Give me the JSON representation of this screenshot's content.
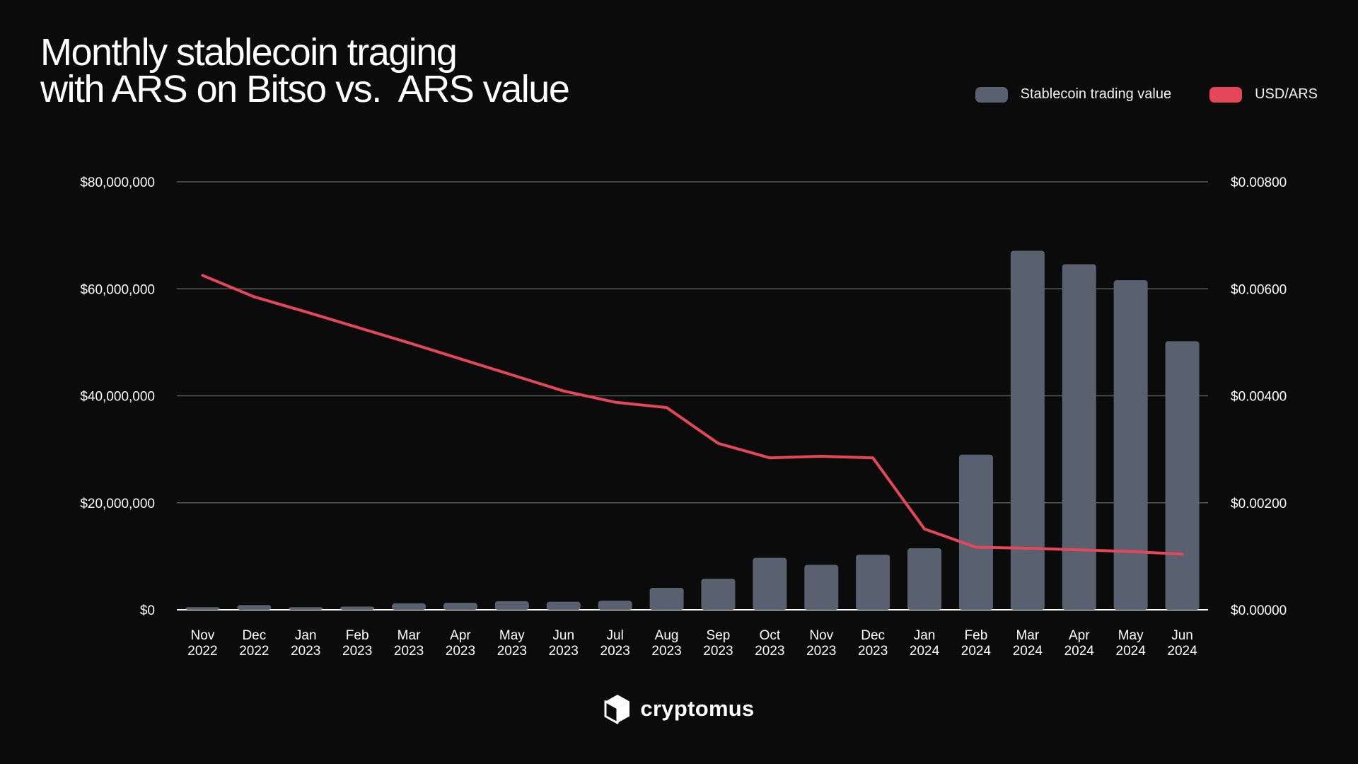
{
  "header": {
    "title_line1": "Monthly stablecoin traging",
    "title_line2": "with ARS on Bitso vs.  ARS value"
  },
  "legend": {
    "bars_label": "Stablecoin trading value",
    "line_label": "USD/ARS"
  },
  "brand": {
    "name": "cryptomus"
  },
  "colors": {
    "bar": "#596170",
    "line": "#e4475a",
    "grid": "#5a5a5a",
    "background": "#0b0b0b"
  },
  "chart_data": {
    "type": "bar+line",
    "title": "Monthly stablecoin traging with ARS on Bitso vs.  ARS value",
    "categories": [
      [
        "Nov",
        "2022"
      ],
      [
        "Dec",
        "2022"
      ],
      [
        "Jan",
        "2023"
      ],
      [
        "Feb",
        "2023"
      ],
      [
        "Mar",
        "2023"
      ],
      [
        "Apr",
        "2023"
      ],
      [
        "May",
        "2023"
      ],
      [
        "Jun",
        "2023"
      ],
      [
        "Jul",
        "2023"
      ],
      [
        "Aug",
        "2023"
      ],
      [
        "Sep",
        "2023"
      ],
      [
        "Oct",
        "2023"
      ],
      [
        "Nov",
        "2023"
      ],
      [
        "Dec",
        "2023"
      ],
      [
        "Jan",
        "2024"
      ],
      [
        "Feb",
        "2024"
      ],
      [
        "Mar",
        "2024"
      ],
      [
        "Apr",
        "2024"
      ],
      [
        "May",
        "2024"
      ],
      [
        "Jun",
        "2024"
      ]
    ],
    "series": [
      {
        "name": "Stablecoin trading value",
        "type": "bar",
        "axis": "left",
        "values": [
          500000,
          900000,
          500000,
          600000,
          1200000,
          1300000,
          1600000,
          1500000,
          1700000,
          4100000,
          5800000,
          9700000,
          8400000,
          10300000,
          11500000,
          29000000,
          67100000,
          64600000,
          61600000,
          50200000
        ]
      },
      {
        "name": "USD/ARS",
        "type": "line",
        "axis": "right",
        "values": [
          0.00625,
          0.00585,
          0.00557,
          0.00528,
          0.00499,
          0.00469,
          0.00439,
          0.00409,
          0.00388,
          0.00378,
          0.00311,
          0.00284,
          0.00287,
          0.00284,
          0.00151,
          0.00117,
          0.00115,
          0.00112,
          0.00109,
          0.00104
        ]
      }
    ],
    "y_left": {
      "min": 0,
      "max": 80000000,
      "ticks": [
        "$0",
        "$20,000,000",
        "$40,000,000",
        "$60,000,000",
        "$80,000,000"
      ]
    },
    "y_right": {
      "min": 0,
      "max": 0.008,
      "ticks": [
        "$0.00000",
        "$0.00200",
        "$0.00400",
        "$0.00600",
        "$0.00800"
      ]
    },
    "grid": true,
    "legend_position": "top-right"
  }
}
